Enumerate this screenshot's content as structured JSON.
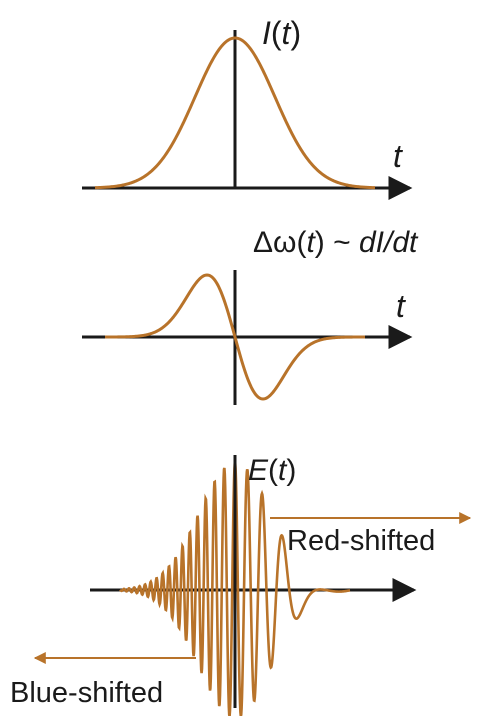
{
  "panels": {
    "intensity": {
      "y_label_fn": "I",
      "y_label_arg": "t",
      "x_label": "t"
    },
    "chirp": {
      "label_delta": "Δω(",
      "label_var": "t",
      "label_rest": ") ~ ",
      "label_deriv": "dI/dt",
      "x_label": "t"
    },
    "field": {
      "y_label_fn": "E",
      "y_label_arg": "t",
      "red_label": "Red-shifted",
      "blue_label": "Blue-shifted"
    }
  },
  "colors": {
    "curve": "#b8732a",
    "axis": "#1a1a1a"
  },
  "icons": [
    "arrow-right-icon",
    "arrow-left-icon"
  ]
}
